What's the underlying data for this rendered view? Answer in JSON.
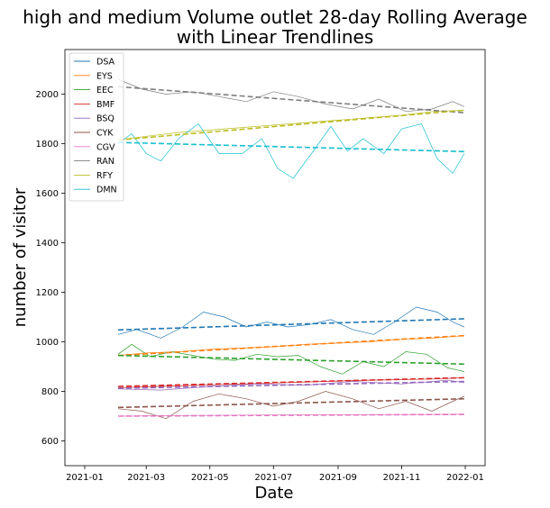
{
  "chart_data": {
    "type": "line",
    "title_line1": "high and medium Volume outlet 28-day Rolling Average",
    "title_line2": "with Linear Trendlines",
    "xlabel": "Date",
    "ylabel": "number of visitor",
    "x_ticks": [
      "2021-01",
      "2021-03",
      "2021-05",
      "2021-07",
      "2021-09",
      "2021-11",
      "2022-01"
    ],
    "y_ticks": [
      600,
      800,
      1000,
      1200,
      1400,
      1600,
      1800,
      2000
    ],
    "xlim": [
      "2020-12-13",
      "2022-01-20"
    ],
    "ylim": [
      500,
      2180
    ],
    "legend_location": "upper left",
    "grid": false,
    "series": [
      {
        "name": "DSA",
        "color": "#1f77b4",
        "rolling_x": [
          "2021-02-02",
          "2021-02-20",
          "2021-03-15",
          "2021-04-05",
          "2021-04-25",
          "2021-05-15",
          "2021-06-05",
          "2021-06-25",
          "2021-07-15",
          "2021-08-05",
          "2021-08-25",
          "2021-09-15",
          "2021-10-05",
          "2021-10-25",
          "2021-11-15",
          "2021-12-05",
          "2021-12-20",
          "2021-12-31"
        ],
        "rolling_y": [
          1030,
          1050,
          1015,
          1060,
          1120,
          1100,
          1060,
          1080,
          1060,
          1070,
          1090,
          1050,
          1030,
          1080,
          1140,
          1120,
          1080,
          1060
        ],
        "trend": [
          1048,
          1093
        ]
      },
      {
        "name": "EYS",
        "color": "#ff7f0e",
        "rolling_x": [
          "2021-02-02",
          "2021-03-01",
          "2021-04-01",
          "2021-05-01",
          "2021-06-01",
          "2021-07-01",
          "2021-08-01",
          "2021-09-01",
          "2021-10-01",
          "2021-11-01",
          "2021-12-01",
          "2021-12-31"
        ],
        "rolling_y": [
          945,
          955,
          960,
          970,
          975,
          980,
          990,
          995,
          1000,
          1010,
          1015,
          1025
        ],
        "trend": [
          945,
          1025
        ]
      },
      {
        "name": "EEC",
        "color": "#2ca02c",
        "rolling_x": [
          "2021-02-02",
          "2021-02-15",
          "2021-03-05",
          "2021-03-25",
          "2021-04-15",
          "2021-05-05",
          "2021-05-25",
          "2021-06-15",
          "2021-07-05",
          "2021-07-25",
          "2021-08-15",
          "2021-09-05",
          "2021-09-25",
          "2021-10-15",
          "2021-11-05",
          "2021-11-25",
          "2021-12-15",
          "2021-12-31"
        ],
        "rolling_y": [
          950,
          990,
          940,
          960,
          945,
          930,
          925,
          950,
          940,
          945,
          900,
          870,
          920,
          900,
          960,
          950,
          895,
          880
        ],
        "trend": [
          945,
          910
        ]
      },
      {
        "name": "BMF",
        "color": "#d62728",
        "rolling_x": [
          "2021-02-02",
          "2021-04-01",
          "2021-06-01",
          "2021-08-01",
          "2021-10-01",
          "2021-12-01",
          "2021-12-31"
        ],
        "rolling_y": [
          815,
          822,
          830,
          838,
          845,
          850,
          855
        ],
        "trend": [
          820,
          855
        ]
      },
      {
        "name": "BSQ",
        "color": "#9467bd",
        "rolling_x": [
          "2021-02-02",
          "2021-03-15",
          "2021-05-01",
          "2021-06-15",
          "2021-08-01",
          "2021-09-15",
          "2021-11-01",
          "2021-12-15",
          "2021-12-31"
        ],
        "rolling_y": [
          810,
          805,
          820,
          830,
          825,
          840,
          830,
          845,
          835
        ],
        "trend": [
          812,
          840
        ]
      },
      {
        "name": "CYK",
        "color": "#8c564b",
        "rolling_x": [
          "2021-02-02",
          "2021-02-25",
          "2021-03-20",
          "2021-04-15",
          "2021-05-10",
          "2021-06-05",
          "2021-07-01",
          "2021-07-25",
          "2021-08-20",
          "2021-09-15",
          "2021-10-10",
          "2021-11-05",
          "2021-11-30",
          "2021-12-20",
          "2021-12-31"
        ],
        "rolling_y": [
          730,
          720,
          690,
          760,
          790,
          770,
          740,
          760,
          800,
          770,
          730,
          760,
          720,
          760,
          780
        ],
        "trend": [
          735,
          770
        ]
      },
      {
        "name": "CGV",
        "color": "#e377c2",
        "rolling_x": [
          "2021-02-02",
          "2021-04-01",
          "2021-06-01",
          "2021-08-01",
          "2021-10-01",
          "2021-12-01",
          "2021-12-31"
        ],
        "rolling_y": [
          700,
          702,
          704,
          705,
          706,
          707,
          708
        ],
        "trend": [
          700,
          707
        ]
      },
      {
        "name": "RAN",
        "color": "#7f7f7f",
        "rolling_x": [
          "2021-02-02",
          "2021-02-25",
          "2021-03-20",
          "2021-04-15",
          "2021-05-10",
          "2021-06-05",
          "2021-07-01",
          "2021-07-25",
          "2021-08-20",
          "2021-09-15",
          "2021-10-10",
          "2021-11-05",
          "2021-11-30",
          "2021-12-20",
          "2021-12-31"
        ],
        "rolling_y": [
          2060,
          2020,
          2000,
          2010,
          1990,
          1970,
          2010,
          1990,
          1960,
          1940,
          1980,
          1930,
          1940,
          1970,
          1950
        ],
        "trend": [
          2030,
          1925
        ]
      },
      {
        "name": "RFY",
        "color": "#bcbd22",
        "rolling_x": [
          "2021-02-02",
          "2021-03-01",
          "2021-04-01",
          "2021-05-01",
          "2021-06-01",
          "2021-07-01",
          "2021-08-01",
          "2021-09-01",
          "2021-10-01",
          "2021-11-01",
          "2021-12-01",
          "2021-12-31"
        ],
        "rolling_y": [
          1815,
          1830,
          1845,
          1855,
          1865,
          1875,
          1885,
          1895,
          1905,
          1915,
          1930,
          1935
        ],
        "trend": [
          1815,
          1935
        ]
      },
      {
        "name": "DMN",
        "color": "#17becf",
        "rolling_x": [
          "2021-02-02",
          "2021-02-15",
          "2021-03-01",
          "2021-03-15",
          "2021-04-01",
          "2021-04-20",
          "2021-05-10",
          "2021-06-01",
          "2021-06-20",
          "2021-07-05",
          "2021-07-20",
          "2021-08-10",
          "2021-08-25",
          "2021-09-10",
          "2021-09-25",
          "2021-10-15",
          "2021-11-01",
          "2021-11-20",
          "2021-12-05",
          "2021-12-20",
          "2021-12-31"
        ],
        "rolling_y": [
          1800,
          1840,
          1760,
          1730,
          1820,
          1880,
          1760,
          1760,
          1820,
          1700,
          1660,
          1780,
          1870,
          1770,
          1820,
          1760,
          1860,
          1880,
          1740,
          1680,
          1760
        ],
        "trend": [
          1805,
          1768
        ]
      }
    ]
  }
}
